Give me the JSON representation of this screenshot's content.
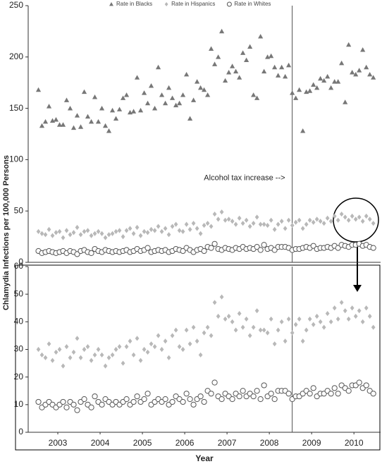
{
  "chart_data": [
    {
      "type": "scatter",
      "xlim": [
        2002.8,
        2011.13
      ],
      "ylim": [
        0,
        250
      ],
      "yticks": [
        0,
        50,
        100,
        150,
        200,
        250
      ],
      "vline": 2009.04,
      "annotation": "Alcohol tax increase -->",
      "legend": "top",
      "x": [
        2003.042,
        2003.125,
        2003.208,
        2003.292,
        2003.375,
        2003.458,
        2003.542,
        2003.625,
        2003.708,
        2003.792,
        2003.875,
        2003.958,
        2004.042,
        2004.125,
        2004.208,
        2004.292,
        2004.375,
        2004.458,
        2004.542,
        2004.625,
        2004.708,
        2004.792,
        2004.875,
        2004.958,
        2005.042,
        2005.125,
        2005.208,
        2005.292,
        2005.375,
        2005.458,
        2005.542,
        2005.625,
        2005.708,
        2005.792,
        2005.875,
        2005.958,
        2006.042,
        2006.125,
        2006.208,
        2006.292,
        2006.375,
        2006.458,
        2006.542,
        2006.625,
        2006.708,
        2006.792,
        2006.875,
        2006.958,
        2007.042,
        2007.125,
        2007.208,
        2007.292,
        2007.375,
        2007.458,
        2007.542,
        2007.625,
        2007.708,
        2007.792,
        2007.875,
        2007.958,
        2008.042,
        2008.125,
        2008.208,
        2008.292,
        2008.375,
        2008.458,
        2008.542,
        2008.625,
        2008.708,
        2008.792,
        2008.875,
        2008.958,
        2009.042,
        2009.125,
        2009.208,
        2009.292,
        2009.375,
        2009.458,
        2009.542,
        2009.625,
        2009.708,
        2009.792,
        2009.875,
        2009.958,
        2010.042,
        2010.125,
        2010.208,
        2010.292,
        2010.375,
        2010.458,
        2010.542,
        2010.625,
        2010.708,
        2010.792,
        2010.875,
        2010.958
      ],
      "series": [
        {
          "name": "Rate in Blacks",
          "color": "#777777",
          "marker": "triangle",
          "values": [
            168,
            133,
            137,
            152,
            138,
            139,
            134,
            134,
            158,
            150,
            131,
            143,
            132,
            166,
            142,
            137,
            161,
            137,
            150,
            133,
            128,
            148,
            140,
            149,
            160,
            163,
            146,
            147,
            180,
            148,
            165,
            155,
            172,
            150,
            190,
            163,
            155,
            170,
            160,
            153,
            155,
            163,
            183,
            140,
            158,
            176,
            170,
            168,
            163,
            208,
            193,
            200,
            225,
            177,
            185,
            191,
            186,
            180,
            204,
            197,
            210,
            163,
            160,
            220,
            186,
            200,
            201,
            190,
            182,
            190,
            181,
            192,
            165,
            160,
            168,
            128,
            166,
            167,
            173,
            170,
            179,
            177,
            181,
            170,
            176,
            176,
            194,
            156,
            212,
            185,
            183,
            187,
            207,
            190,
            183,
            180
          ]
        },
        {
          "name": "Rate in Hispanics",
          "color": "#b8b8b8",
          "marker": "diamond",
          "values": [
            30,
            28,
            27,
            32,
            26,
            29,
            30,
            24,
            31,
            27,
            29,
            34,
            27,
            30,
            31,
            26,
            28,
            30,
            28,
            24,
            27,
            28,
            30,
            31,
            25,
            31,
            33,
            28,
            34,
            26,
            30,
            29,
            32,
            31,
            35,
            30,
            33,
            27,
            35,
            37,
            31,
            30,
            37,
            32,
            38,
            33,
            28,
            36,
            38,
            35,
            47,
            42,
            49,
            41,
            42,
            40,
            37,
            43,
            38,
            41,
            35,
            38,
            44,
            37,
            37,
            36,
            41,
            32,
            37,
            40,
            33,
            41,
            36,
            39,
            41,
            33,
            37,
            41,
            39,
            42,
            40,
            38,
            43,
            40,
            45,
            41,
            47,
            44,
            41,
            45,
            42,
            44,
            40,
            45,
            42,
            38
          ]
        },
        {
          "name": "Rate in Whites",
          "color": "#555555",
          "marker": "circle-open",
          "values": [
            11,
            9,
            10,
            11,
            10,
            9,
            10,
            11,
            9,
            11,
            10,
            8,
            11,
            12,
            10,
            9,
            13,
            11,
            10,
            12,
            11,
            10,
            11,
            10,
            11,
            12,
            10,
            11,
            13,
            11,
            12,
            14,
            10,
            11,
            12,
            11,
            12,
            10,
            11,
            13,
            12,
            11,
            14,
            12,
            10,
            12,
            13,
            11,
            15,
            14,
            18,
            13,
            12,
            14,
            13,
            12,
            14,
            13,
            15,
            13,
            14,
            13,
            15,
            12,
            17,
            13,
            14,
            12,
            15,
            15,
            15,
            14,
            12,
            13,
            13,
            14,
            15,
            14,
            16,
            13,
            14,
            14,
            15,
            14,
            16,
            14,
            17,
            16,
            15,
            17,
            17,
            18,
            16,
            17,
            15,
            14
          ]
        }
      ]
    },
    {
      "type": "scatter",
      "xlim": [
        2002.8,
        2011.13
      ],
      "ylim": [
        0,
        60
      ],
      "yticks": [
        0,
        10,
        20,
        30,
        40,
        50,
        60
      ],
      "vline": 2009.04,
      "xlabel": "Year",
      "ylabel": "Chlamydia Infections per 100,000 Persons",
      "xticks": [
        {
          "value": 2003.5,
          "label": "2003"
        },
        {
          "value": 2004.5,
          "label": "2004"
        },
        {
          "value": 2005.5,
          "label": "2005"
        },
        {
          "value": 2006.5,
          "label": "2006"
        },
        {
          "value": 2007.5,
          "label": "2007"
        },
        {
          "value": 2008.5,
          "label": "2008"
        },
        {
          "value": 2009.5,
          "label": "2009"
        },
        {
          "value": 2010.5,
          "label": "2010"
        }
      ],
      "x": [
        2003.042,
        2003.125,
        2003.208,
        2003.292,
        2003.375,
        2003.458,
        2003.542,
        2003.625,
        2003.708,
        2003.792,
        2003.875,
        2003.958,
        2004.042,
        2004.125,
        2004.208,
        2004.292,
        2004.375,
        2004.458,
        2004.542,
        2004.625,
        2004.708,
        2004.792,
        2004.875,
        2004.958,
        2005.042,
        2005.125,
        2005.208,
        2005.292,
        2005.375,
        2005.458,
        2005.542,
        2005.625,
        2005.708,
        2005.792,
        2005.875,
        2005.958,
        2006.042,
        2006.125,
        2006.208,
        2006.292,
        2006.375,
        2006.458,
        2006.542,
        2006.625,
        2006.708,
        2006.792,
        2006.875,
        2006.958,
        2007.042,
        2007.125,
        2007.208,
        2007.292,
        2007.375,
        2007.458,
        2007.542,
        2007.625,
        2007.708,
        2007.792,
        2007.875,
        2007.958,
        2008.042,
        2008.125,
        2008.208,
        2008.292,
        2008.375,
        2008.458,
        2008.542,
        2008.625,
        2008.708,
        2008.792,
        2008.875,
        2008.958,
        2009.042,
        2009.125,
        2009.208,
        2009.292,
        2009.375,
        2009.458,
        2009.542,
        2009.625,
        2009.708,
        2009.792,
        2009.875,
        2009.958,
        2010.042,
        2010.125,
        2010.208,
        2010.292,
        2010.375,
        2010.458,
        2010.542,
        2010.625,
        2010.708,
        2010.792,
        2010.875,
        2010.958
      ],
      "series": [
        {
          "color": "#b8b8b8",
          "marker": "diamond",
          "values": [
            30,
            28,
            27,
            32,
            26,
            29,
            30,
            24,
            31,
            27,
            29,
            34,
            27,
            30,
            31,
            26,
            28,
            30,
            28,
            24,
            27,
            28,
            30,
            31,
            25,
            31,
            33,
            28,
            34,
            26,
            30,
            29,
            32,
            31,
            35,
            30,
            33,
            27,
            35,
            37,
            31,
            30,
            37,
            32,
            38,
            33,
            28,
            36,
            38,
            35,
            47,
            42,
            49,
            41,
            42,
            40,
            37,
            43,
            38,
            41,
            35,
            38,
            44,
            37,
            37,
            36,
            41,
            32,
            37,
            40,
            33,
            41,
            36,
            39,
            41,
            33,
            37,
            41,
            39,
            42,
            40,
            38,
            43,
            40,
            45,
            41,
            47,
            44,
            41,
            45,
            42,
            44,
            40,
            45,
            42,
            38
          ]
        },
        {
          "color": "#555555",
          "marker": "circle-open",
          "values": [
            11,
            9,
            10,
            11,
            10,
            9,
            10,
            11,
            9,
            11,
            10,
            8,
            11,
            12,
            10,
            9,
            13,
            11,
            10,
            12,
            11,
            10,
            11,
            10,
            11,
            12,
            10,
            11,
            13,
            11,
            12,
            14,
            10,
            11,
            12,
            11,
            12,
            10,
            11,
            13,
            12,
            11,
            14,
            12,
            10,
            12,
            13,
            11,
            15,
            14,
            18,
            13,
            12,
            14,
            13,
            12,
            14,
            13,
            15,
            13,
            14,
            13,
            15,
            12,
            17,
            13,
            14,
            12,
            15,
            15,
            15,
            14,
            12,
            13,
            13,
            14,
            15,
            14,
            16,
            13,
            14,
            14,
            15,
            14,
            16,
            14,
            17,
            16,
            15,
            17,
            17,
            18,
            16,
            17,
            15,
            14
          ]
        }
      ]
    }
  ]
}
